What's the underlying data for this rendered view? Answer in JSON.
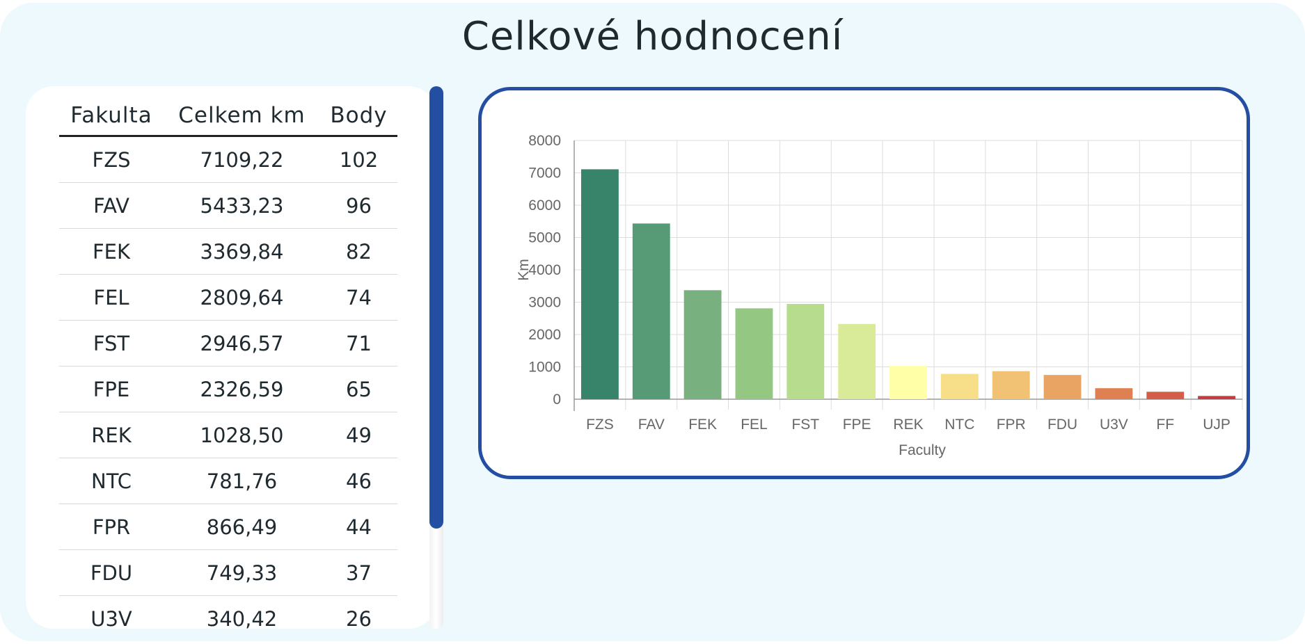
{
  "title": "Celkové hodnocení",
  "table": {
    "headers": [
      "Fakulta",
      "Celkem km",
      "Body"
    ],
    "rows": [
      [
        "FZS",
        "7109,22",
        "102"
      ],
      [
        "FAV",
        "5433,23",
        "96"
      ],
      [
        "FEK",
        "3369,84",
        "82"
      ],
      [
        "FEL",
        "2809,64",
        "74"
      ],
      [
        "FST",
        "2946,57",
        "71"
      ],
      [
        "FPE",
        "2326,59",
        "65"
      ],
      [
        "REK",
        "1028,50",
        "49"
      ],
      [
        "NTC",
        "781,76",
        "46"
      ],
      [
        "FPR",
        "866,49",
        "44"
      ],
      [
        "FDU",
        "749,33",
        "37"
      ],
      [
        "U3V",
        "340,42",
        "26"
      ]
    ]
  },
  "colors": {
    "accent": "#234ea1",
    "background": "#edf9fd"
  },
  "chart_data": {
    "type": "bar",
    "xlabel": "Faculty",
    "ylabel": "Km",
    "ylim": [
      0,
      8000
    ],
    "yticks": [
      0,
      1000,
      2000,
      3000,
      4000,
      5000,
      6000,
      7000,
      8000
    ],
    "grid": true,
    "categories": [
      "FZS",
      "FAV",
      "FEK",
      "FEL",
      "FST",
      "FPE",
      "REK",
      "NTC",
      "FPR",
      "FDU",
      "U3V",
      "FF",
      "UJP"
    ],
    "values": [
      7109.22,
      5433.23,
      3369.84,
      2809.64,
      2946.57,
      2326.59,
      1028.5,
      781.76,
      866.49,
      749.33,
      340.42,
      230,
      100
    ],
    "bar_colors": [
      "#37846a",
      "#579b76",
      "#78b07f",
      "#93c782",
      "#b7dc8e",
      "#d9eb99",
      "#ffffa8",
      "#f7df8a",
      "#f2c274",
      "#e9a463",
      "#de8052",
      "#d45e4a",
      "#c63c43"
    ]
  }
}
